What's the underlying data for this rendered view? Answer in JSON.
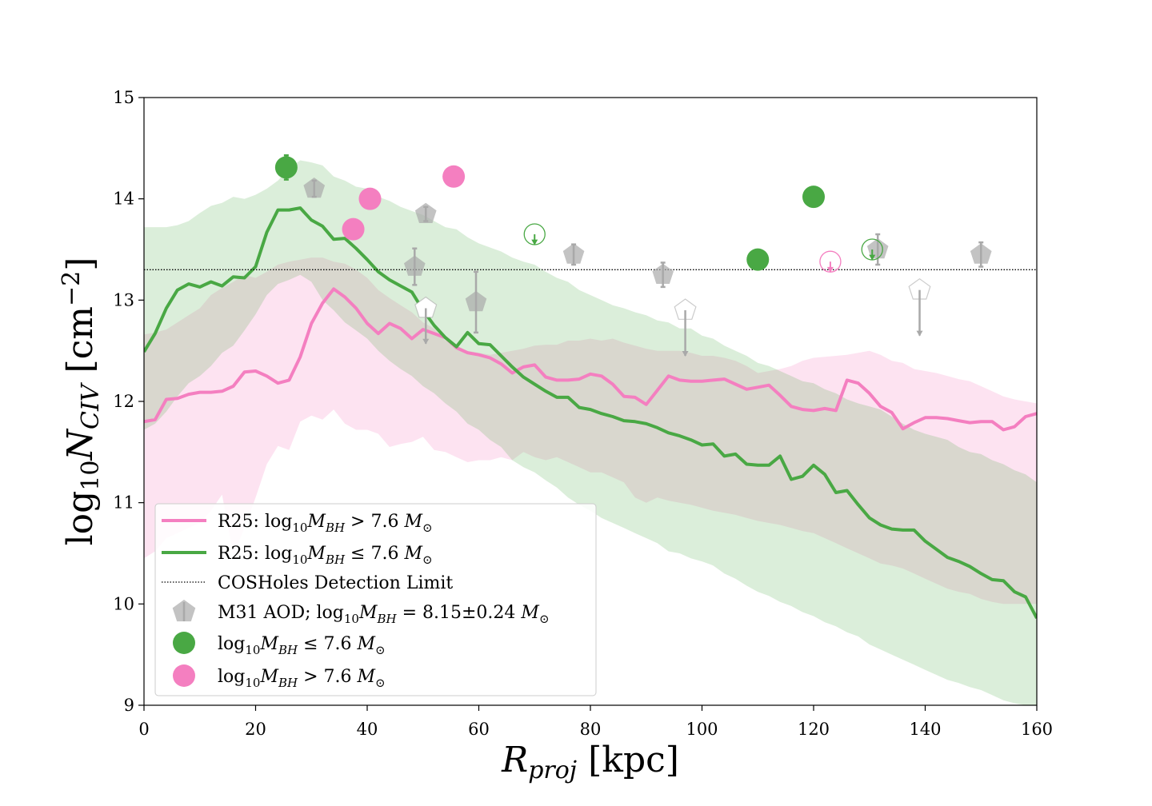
{
  "chart_data": {
    "type": "line",
    "xlabel": "R_proj [kpc]",
    "xlabel_math": "R",
    "xlabel_sub": "proj",
    "xlabel_unit": " [kpc]",
    "ylabel_prefix": "log",
    "ylabel_sub10": "10",
    "ylabel_N": "N",
    "ylabel_subCIV": "CIV",
    "ylabel_unit": " [cm",
    "ylabel_exp": "−2",
    "ylabel_close": "]",
    "xlim": [
      0,
      160
    ],
    "ylim": [
      9,
      15
    ],
    "xticks": [
      0,
      20,
      40,
      60,
      80,
      100,
      120,
      140,
      160
    ],
    "yticks": [
      9,
      10,
      11,
      12,
      13,
      14,
      15
    ],
    "detection_limit": 13.3,
    "colors": {
      "pink": "#f47fc0",
      "green": "#49a844",
      "gray": "#a9a9a9",
      "pink_band": "#fbd3e8",
      "green_band": "#c8e8c4",
      "overlap_band": "#d5d4cb"
    },
    "series": [
      {
        "name": "R25: log10 M_BH > 7.6 M_sun",
        "color": "#f47fc0",
        "x": [
          0,
          2,
          4,
          6,
          8,
          10,
          12,
          14,
          16,
          18,
          20,
          22,
          24,
          26,
          28,
          30,
          32,
          34,
          36,
          38,
          40,
          42,
          44,
          46,
          48,
          50,
          52,
          54,
          56,
          58,
          60,
          62,
          64,
          66,
          68,
          70,
          72,
          74,
          76,
          78,
          80,
          82,
          84,
          86,
          88,
          90,
          92,
          94,
          96,
          98,
          100,
          102,
          104,
          106,
          108,
          110,
          112,
          114,
          116,
          118,
          120,
          122,
          124,
          126,
          128,
          130,
          132,
          134,
          136,
          138,
          140,
          142,
          144,
          146,
          148,
          150,
          152,
          154,
          156,
          158,
          160
        ],
        "median": [
          11.8,
          11.82,
          12.02,
          12.03,
          12.07,
          12.09,
          12.09,
          12.1,
          12.15,
          12.29,
          12.3,
          12.25,
          12.18,
          12.21,
          12.44,
          12.77,
          12.97,
          13.11,
          13.03,
          12.92,
          12.77,
          12.67,
          12.77,
          12.72,
          12.62,
          12.71,
          12.67,
          12.63,
          12.53,
          12.48,
          12.46,
          12.43,
          12.37,
          12.28,
          12.34,
          12.36,
          12.24,
          12.21,
          12.21,
          12.22,
          12.27,
          12.25,
          12.17,
          12.05,
          12.04,
          11.97,
          12.11,
          12.25,
          12.21,
          12.2,
          12.2,
          12.21,
          12.22,
          12.17,
          12.12,
          12.14,
          12.16,
          12.06,
          11.95,
          11.92,
          11.91,
          11.93,
          11.91,
          12.21,
          12.18,
          12.08,
          11.95,
          11.89,
          11.73,
          11.79,
          11.84,
          11.84,
          11.83,
          11.81,
          11.79,
          11.8,
          11.8,
          11.72,
          11.75,
          11.85,
          11.88
        ],
        "upper": [
          12.66,
          12.68,
          12.71,
          12.78,
          12.85,
          12.92,
          13.05,
          13.12,
          13.18,
          13.25,
          13.22,
          13.28,
          13.35,
          13.38,
          13.4,
          13.42,
          13.42,
          13.38,
          13.36,
          13.3,
          13.22,
          13.1,
          13.02,
          12.95,
          12.88,
          12.78,
          12.72,
          12.6,
          12.55,
          12.5,
          12.48,
          12.46,
          12.48,
          12.5,
          12.52,
          12.55,
          12.56,
          12.56,
          12.6,
          12.6,
          12.62,
          12.6,
          12.62,
          12.58,
          12.55,
          12.52,
          12.5,
          12.5,
          12.5,
          12.48,
          12.45,
          12.45,
          12.43,
          12.4,
          12.35,
          12.28,
          12.3,
          12.32,
          12.35,
          12.4,
          12.43,
          12.44,
          12.45,
          12.46,
          12.48,
          12.5,
          12.46,
          12.4,
          12.38,
          12.32,
          12.3,
          12.28,
          12.25,
          12.22,
          12.2,
          12.15,
          12.1,
          12.05,
          12.02,
          12.0,
          11.98
        ],
        "lower": [
          10.45,
          10.52,
          10.65,
          10.7,
          10.75,
          10.8,
          10.92,
          11.08,
          10.48,
          10.75,
          11.05,
          11.38,
          11.56,
          11.52,
          11.8,
          11.86,
          11.82,
          11.92,
          11.78,
          11.72,
          11.72,
          11.68,
          11.55,
          11.58,
          11.6,
          11.65,
          11.52,
          11.5,
          11.45,
          11.4,
          11.42,
          11.42,
          11.45,
          11.42,
          11.5,
          11.45,
          11.42,
          11.45,
          11.4,
          11.35,
          11.3,
          11.3,
          11.25,
          11.2,
          11.05,
          11.0,
          11.05,
          11.02,
          11.0,
          10.98,
          10.95,
          10.92,
          10.9,
          10.88,
          10.85,
          10.82,
          10.8,
          10.78,
          10.75,
          10.72,
          10.7,
          10.65,
          10.6,
          10.55,
          10.5,
          10.45,
          10.4,
          10.38,
          10.35,
          10.3,
          10.25,
          10.2,
          10.15,
          10.12,
          10.1,
          10.05,
          10.02,
          10.0,
          10.0,
          10.0,
          10.0
        ]
      },
      {
        "name": "R25: log10 M_BH <= 7.6 M_sun",
        "color": "#49a844",
        "x": [
          0,
          2,
          4,
          6,
          8,
          10,
          12,
          14,
          16,
          18,
          20,
          22,
          24,
          26,
          28,
          30,
          32,
          34,
          36,
          38,
          40,
          42,
          44,
          46,
          48,
          50,
          52,
          54,
          56,
          58,
          60,
          62,
          64,
          66,
          68,
          70,
          72,
          74,
          76,
          78,
          80,
          82,
          84,
          86,
          88,
          90,
          92,
          94,
          96,
          98,
          100,
          102,
          104,
          106,
          108,
          110,
          112,
          114,
          116,
          118,
          120,
          122,
          124,
          126,
          128,
          130,
          132,
          134,
          136,
          138,
          140,
          142,
          144,
          146,
          148,
          150,
          152,
          154,
          156,
          158,
          160
        ],
        "median": [
          12.49,
          12.67,
          12.92,
          13.1,
          13.16,
          13.13,
          13.18,
          13.14,
          13.23,
          13.22,
          13.33,
          13.67,
          13.89,
          13.89,
          13.91,
          13.79,
          13.73,
          13.6,
          13.61,
          13.51,
          13.4,
          13.28,
          13.2,
          13.14,
          13.08,
          12.9,
          12.75,
          12.63,
          12.54,
          12.68,
          12.57,
          12.56,
          12.45,
          12.34,
          12.24,
          12.17,
          12.1,
          12.04,
          12.04,
          11.94,
          11.92,
          11.88,
          11.85,
          11.81,
          11.8,
          11.78,
          11.74,
          11.69,
          11.66,
          11.62,
          11.57,
          11.58,
          11.46,
          11.48,
          11.38,
          11.37,
          11.37,
          11.46,
          11.23,
          11.26,
          11.37,
          11.28,
          11.1,
          11.12,
          10.98,
          10.85,
          10.78,
          10.74,
          10.73,
          10.73,
          10.62,
          10.54,
          10.46,
          10.42,
          10.37,
          10.3,
          10.24,
          10.23,
          10.12,
          10.07,
          9.86
        ],
        "upper": [
          13.72,
          13.72,
          13.72,
          13.74,
          13.78,
          13.86,
          13.93,
          13.96,
          14.02,
          14.0,
          14.04,
          14.1,
          14.18,
          14.3,
          14.38,
          14.36,
          14.33,
          14.22,
          14.18,
          14.12,
          14.1,
          14.02,
          13.98,
          13.92,
          13.88,
          13.84,
          13.78,
          13.72,
          13.7,
          13.62,
          13.56,
          13.52,
          13.48,
          13.42,
          13.38,
          13.35,
          13.28,
          13.22,
          13.18,
          13.1,
          13.05,
          13.0,
          12.95,
          12.92,
          12.88,
          12.85,
          12.8,
          12.78,
          12.72,
          12.72,
          12.65,
          12.62,
          12.55,
          12.5,
          12.45,
          12.38,
          12.35,
          12.3,
          12.25,
          12.2,
          12.18,
          12.12,
          12.08,
          12.02,
          11.98,
          11.95,
          11.92,
          11.85,
          11.78,
          11.72,
          11.68,
          11.65,
          11.62,
          11.55,
          11.5,
          11.48,
          11.42,
          11.38,
          11.32,
          11.28,
          11.2
        ],
        "lower": [
          11.72,
          11.78,
          11.9,
          12.05,
          12.18,
          12.25,
          12.35,
          12.48,
          12.55,
          12.7,
          12.86,
          13.05,
          13.16,
          13.2,
          13.25,
          13.18,
          13.0,
          12.9,
          12.78,
          12.7,
          12.62,
          12.5,
          12.4,
          12.32,
          12.25,
          12.15,
          12.08,
          11.98,
          11.9,
          11.78,
          11.72,
          11.62,
          11.55,
          11.42,
          11.35,
          11.3,
          11.22,
          11.15,
          11.05,
          10.98,
          10.92,
          10.85,
          10.8,
          10.75,
          10.7,
          10.65,
          10.6,
          10.52,
          10.5,
          10.45,
          10.42,
          10.38,
          10.3,
          10.25,
          10.18,
          10.12,
          10.08,
          10.02,
          9.98,
          9.92,
          9.88,
          9.82,
          9.78,
          9.72,
          9.68,
          9.6,
          9.55,
          9.5,
          9.45,
          9.4,
          9.35,
          9.3,
          9.25,
          9.22,
          9.18,
          9.15,
          9.1,
          9.05,
          9.02,
          9.0,
          9.0
        ]
      }
    ],
    "m31_points": [
      {
        "x": 30.5,
        "y": 14.1,
        "err": 0.08,
        "filled": true
      },
      {
        "x": 50.5,
        "y": 13.85,
        "err": 0.07,
        "filled": true
      },
      {
        "x": 48.5,
        "y": 13.33,
        "err": 0.18,
        "filled": true
      },
      {
        "x": 50.5,
        "y": 12.92,
        "err": 0.35,
        "filled": false,
        "limit": "upper"
      },
      {
        "x": 59.5,
        "y": 12.98,
        "err": 0.3,
        "filled": true
      },
      {
        "x": 77.0,
        "y": 13.45,
        "err": 0.1,
        "filled": true
      },
      {
        "x": 93.0,
        "y": 13.25,
        "err": 0.12,
        "filled": true
      },
      {
        "x": 97.0,
        "y": 12.9,
        "err": 0.45,
        "filled": false,
        "limit": "upper"
      },
      {
        "x": 131.5,
        "y": 13.5,
        "err": 0.15,
        "filled": true
      },
      {
        "x": 139.0,
        "y": 13.1,
        "err": 0.45,
        "filled": false,
        "limit": "upper"
      },
      {
        "x": 150.0,
        "y": 13.45,
        "err": 0.12,
        "filled": true
      }
    ],
    "low_mass_points": [
      {
        "x": 25.5,
        "y": 14.31,
        "err": 0.12,
        "filled": true
      },
      {
        "x": 70.0,
        "y": 13.65,
        "err": 0.1,
        "filled": false,
        "limit": "upper"
      },
      {
        "x": 110.0,
        "y": 13.4,
        "err": 0.0,
        "filled": true
      },
      {
        "x": 120.0,
        "y": 14.02,
        "err": 0.0,
        "filled": true
      },
      {
        "x": 130.5,
        "y": 13.5,
        "err": 0.1,
        "filled": false,
        "limit": "upper"
      }
    ],
    "high_mass_points": [
      {
        "x": 37.5,
        "y": 13.7,
        "err": 0.0,
        "filled": true
      },
      {
        "x": 40.5,
        "y": 14.0,
        "err": 0.0,
        "filled": true
      },
      {
        "x": 55.5,
        "y": 14.22,
        "err": 0.0,
        "filled": true
      },
      {
        "x": 123.0,
        "y": 13.38,
        "err": 0.1,
        "filled": false,
        "limit": "upper"
      }
    ],
    "legend": {
      "position": "lower-left",
      "entries": [
        {
          "text_pre": "R25: log",
          "sub": "10",
          "text_m": "M",
          "sub2": "BH",
          "text_post": " > 7.6 ",
          "unit": "M",
          "unit_sub": "⊙"
        },
        {
          "text_pre": "R25: log",
          "sub": "10",
          "text_m": "M",
          "sub2": "BH",
          "text_post": " ≤ 7.6 ",
          "unit": "M",
          "unit_sub": "⊙"
        },
        {
          "text_full": "COSHoles Detection Limit"
        },
        {
          "text_pre": "M31 AOD; log",
          "sub": "10",
          "text_m": "M",
          "sub2": "BH",
          "text_post": " = 8.15±0.24 ",
          "unit": "M",
          "unit_sub": "⊙"
        },
        {
          "text_pre": "log",
          "sub": "10",
          "text_m": "M",
          "sub2": "BH",
          "text_post": " ≤ 7.6 ",
          "unit": "M",
          "unit_sub": "⊙"
        },
        {
          "text_pre": "log",
          "sub": "10",
          "text_m": "M",
          "sub2": "BH",
          "text_post": " > 7.6 ",
          "unit": "M",
          "unit_sub": "⊙"
        }
      ]
    }
  }
}
